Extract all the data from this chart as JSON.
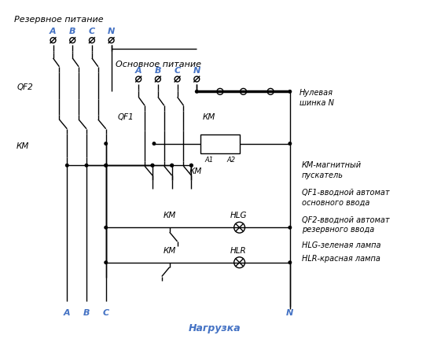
{
  "bg_color": "#ffffff",
  "line_color": "#000000",
  "label_color_blue": "#4472c4",
  "title_rezervnoe": "Резервное питание",
  "title_osnovnoe": "Основное питание",
  "title_nagruzka": "Нагрузка",
  "label_null_shinka": "Нулевая\nшинка N",
  "legend_km": "КМ-магнитный\nпускатель",
  "legend_qf1": "QF1-вводной автомат\nосновного ввода",
  "legend_qf2": "QF2-вводной автомат\nрезервного ввода",
  "legend_hlg": "HLG-зеленая лампа",
  "legend_hlr": "HLR-красная лампа",
  "fig_width": 5.47,
  "fig_height": 4.59,
  "dpi": 100
}
